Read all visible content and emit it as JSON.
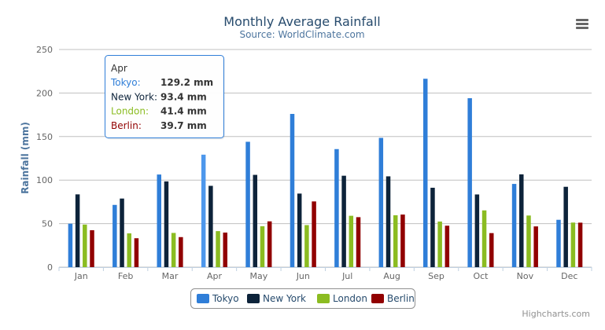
{
  "chart_data": {
    "type": "bar",
    "title": "Monthly Average Rainfall",
    "subtitle": "Source: WorldClimate.com",
    "ylabel": "Rainfall (mm)",
    "xlabel": "",
    "ylim": [
      0,
      250
    ],
    "yticks": [
      0,
      50,
      100,
      150,
      200,
      250
    ],
    "grid": true,
    "legend_placement": "bottom",
    "categories": [
      "Jan",
      "Feb",
      "Mar",
      "Apr",
      "May",
      "Jun",
      "Jul",
      "Aug",
      "Sep",
      "Oct",
      "Nov",
      "Dec"
    ],
    "series": [
      {
        "name": "Tokyo",
        "color": "#2f7ed8",
        "values": [
          49.9,
          71.5,
          106.4,
          129.2,
          144.0,
          176.0,
          135.6,
          148.5,
          216.4,
          194.1,
          95.6,
          54.4
        ]
      },
      {
        "name": "New York",
        "color": "#0d233a",
        "values": [
          83.6,
          78.8,
          98.5,
          93.4,
          106.0,
          84.5,
          105.0,
          104.3,
          91.2,
          83.5,
          106.6,
          92.3
        ]
      },
      {
        "name": "London",
        "color": "#8bbc21",
        "values": [
          48.9,
          38.8,
          39.3,
          41.4,
          47.0,
          48.3,
          59.0,
          59.6,
          52.4,
          65.2,
          59.3,
          51.2
        ]
      },
      {
        "name": "Berlin",
        "color": "#910000",
        "values": [
          42.4,
          33.2,
          34.5,
          39.7,
          52.6,
          75.5,
          57.4,
          60.4,
          47.6,
          39.1,
          46.8,
          51.1
        ]
      }
    ],
    "tooltip": {
      "header": "Apr",
      "rows": [
        {
          "name": "Tokyo:",
          "value": "129.2 mm"
        },
        {
          "name": "New York:",
          "value": "93.4 mm"
        },
        {
          "name": "London:",
          "value": "41.4 mm"
        },
        {
          "name": "Berlin:",
          "value": "39.7 mm"
        }
      ]
    },
    "credits": "Highcharts.com",
    "colors": {
      "title": "#274b6d",
      "subtitle": "#4d759e",
      "axis_label": "#4d759e"
    }
  },
  "menu": {
    "icon": "hamburger-menu-icon"
  }
}
